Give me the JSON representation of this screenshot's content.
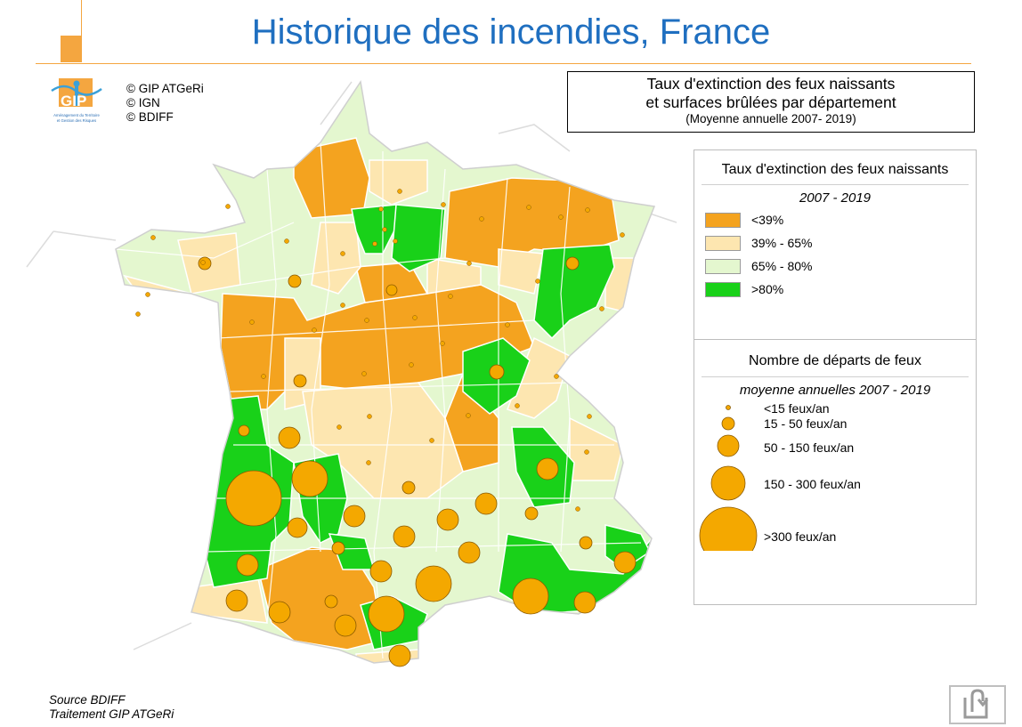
{
  "title": "Historique des incendies, France",
  "credits": [
    "© GIP ATGeRi",
    "© IGN",
    "© BDIFF"
  ],
  "logo": {
    "text": "GIP",
    "subtitle_1": "Aménagement du Territoire",
    "subtitle_2": "et Gestion des Risques"
  },
  "map_title": {
    "line1": "Taux d'extinction des feux naissants",
    "line2": "et surfaces brûlées par département",
    "line3": "(Moyenne annuelle 2007- 2019)"
  },
  "legend_rate": {
    "heading": "Taux d'extinction des feux naissants",
    "period": "2007 - 2019",
    "classes": [
      {
        "label": "<39%",
        "color": "#f4a31f"
      },
      {
        "label": "39% - 65%",
        "color": "#fde6b0"
      },
      {
        "label": "65% - 80%",
        "color": "#e4f7cf"
      },
      {
        "label": ">80%",
        "color": "#19d119"
      }
    ]
  },
  "legend_fires": {
    "heading": "Nombre de départs de feux",
    "period": "moyenne annuelles 2007 - 2019",
    "classes": [
      "<15 feux/an",
      "15 - 50 feux/an",
      "50 - 150 feux/an",
      "150 - 300 feux/an",
      ">300 feux/an"
    ],
    "symbol_color": "#f4a800"
  },
  "source": [
    "Source BDIFF",
    "Traitement GIP ATGeRi"
  ],
  "nav": {
    "icon": "return-arrow-icon"
  }
}
